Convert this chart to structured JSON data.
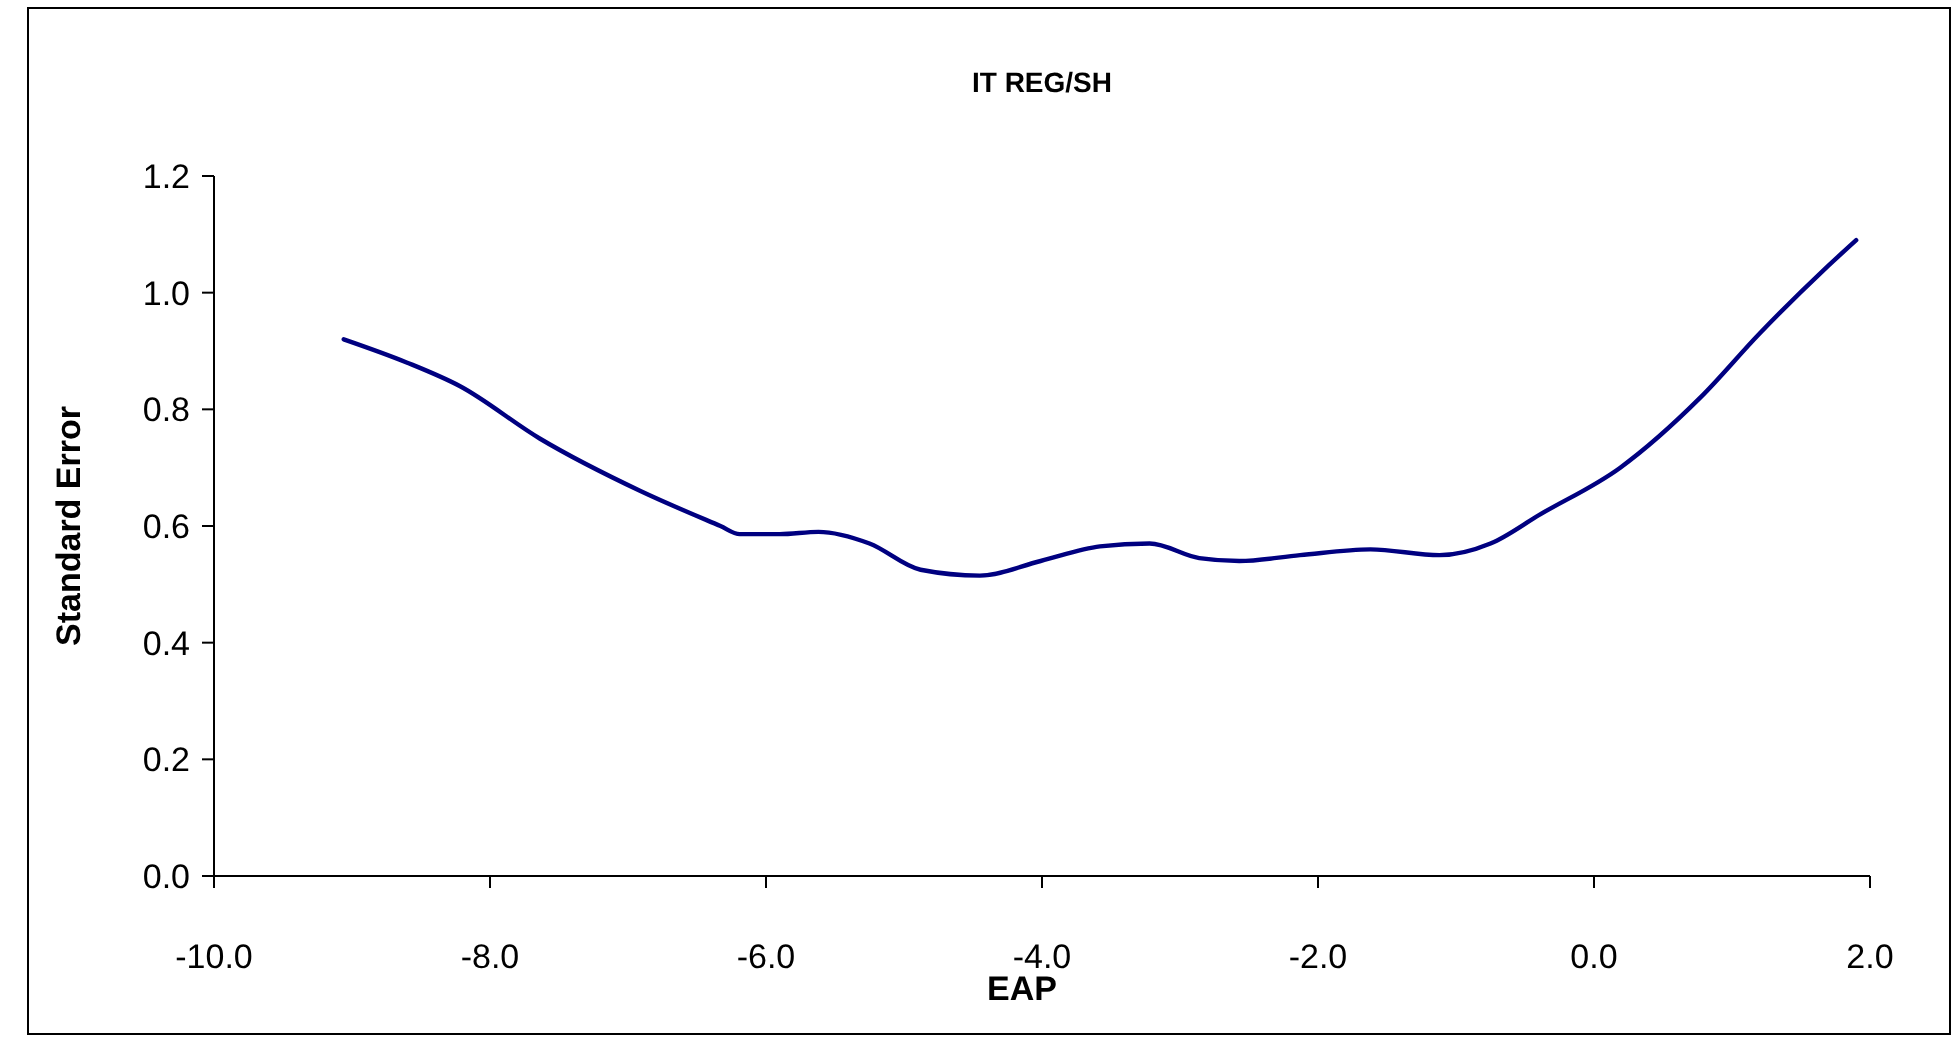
{
  "chart_data": {
    "type": "line",
    "title": "IT REG/SH",
    "xlabel": "EAP",
    "ylabel": "Standard Error",
    "x": [
      -9.06,
      -8.6,
      -8.22,
      -7.64,
      -6.91,
      -6.33,
      -6.19,
      -5.9,
      -5.62,
      -5.25,
      -4.88,
      -4.45,
      -4.01,
      -3.58,
      -3.22,
      -2.86,
      -2.57,
      -2.13,
      -1.62,
      -1.12,
      -0.75,
      -0.39,
      0.19,
      0.77,
      1.2,
      1.67,
      1.9
    ],
    "series": [
      {
        "color": "#000080",
        "values": [
          0.92,
          0.88,
          0.84,
          0.75,
          0.66,
          0.6,
          0.586,
          0.586,
          0.59,
          0.57,
          0.525,
          0.515,
          0.54,
          0.565,
          0.57,
          0.545,
          0.54,
          0.55,
          0.56,
          0.55,
          0.57,
          0.62,
          0.7,
          0.82,
          0.93,
          1.04,
          1.09
        ]
      }
    ],
    "xlim": [
      -10,
      2
    ],
    "xticks": [
      {
        "value": -10,
        "label": "-10.0"
      },
      {
        "value": -8,
        "label": "-8.0"
      },
      {
        "value": -6,
        "label": "-6.0"
      },
      {
        "value": -4,
        "label": "-4.0"
      },
      {
        "value": -2,
        "label": "-2.0"
      },
      {
        "value": 0,
        "label": "0.0"
      },
      {
        "value": 2,
        "label": "2.0"
      }
    ],
    "ylim": [
      0,
      1.2
    ],
    "yticks": [
      {
        "value": 0,
        "label": "0.0"
      },
      {
        "value": 0.2,
        "label": "0.2"
      },
      {
        "value": 0.4,
        "label": "0.4"
      },
      {
        "value": 0.6,
        "label": "0.6"
      },
      {
        "value": 0.8,
        "label": "0.8"
      },
      {
        "value": 1,
        "label": "1.0"
      },
      {
        "value": 1.2,
        "label": "1.2"
      }
    ],
    "grid": false,
    "marker": "none",
    "line_style": "solid"
  }
}
